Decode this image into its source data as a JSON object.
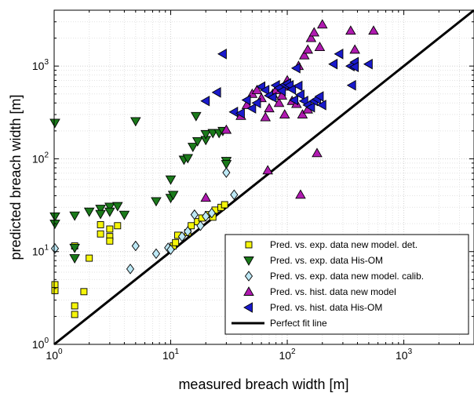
{
  "chart_data": {
    "type": "scatter",
    "title": "",
    "xlabel": "measured breach width [m]",
    "ylabel": "predicted breach width [m]",
    "xscale": "log",
    "yscale": "log",
    "xlim": [
      1,
      4000
    ],
    "ylim": [
      1,
      4000
    ],
    "x_ticks": [
      {
        "value": 1,
        "base": "10",
        "exp": "0"
      },
      {
        "value": 10,
        "base": "10",
        "exp": "1"
      },
      {
        "value": 100,
        "base": "10",
        "exp": "2"
      },
      {
        "value": 1000,
        "base": "10",
        "exp": "3"
      }
    ],
    "y_ticks": [
      {
        "value": 1,
        "base": "10",
        "exp": "0"
      },
      {
        "value": 10,
        "base": "10",
        "exp": "1"
      },
      {
        "value": 100,
        "base": "10",
        "exp": "2"
      },
      {
        "value": 1000,
        "base": "10",
        "exp": "3"
      }
    ],
    "grid": true,
    "legend_position": "bottom-right",
    "series": [
      {
        "name": "Pred. vs. exp. data new model. det.",
        "marker": "square",
        "color": "#f5f50a",
        "points": [
          [
            1.0,
            4.4
          ],
          [
            1.0,
            3.8
          ],
          [
            1.5,
            11.5
          ],
          [
            1.5,
            2.6
          ],
          [
            1.5,
            2.1
          ],
          [
            1.8,
            3.7
          ],
          [
            2.0,
            8.5
          ],
          [
            2.5,
            19.5
          ],
          [
            2.5,
            15.5
          ],
          [
            3.0,
            17.5
          ],
          [
            3.0,
            14.5
          ],
          [
            3.0,
            13.0
          ],
          [
            3.5,
            19.0
          ],
          [
            10.5,
            11.5
          ],
          [
            11.0,
            12.5
          ],
          [
            11.5,
            15.0
          ],
          [
            14.0,
            16.0
          ],
          [
            15.0,
            19.0
          ],
          [
            17.0,
            21.0
          ],
          [
            18.5,
            23.0
          ],
          [
            21.0,
            25.0
          ],
          [
            23.0,
            23.5
          ],
          [
            24.0,
            28.0
          ],
          [
            27.0,
            30.0
          ],
          [
            29.0,
            32.0
          ]
        ]
      },
      {
        "name": "Pred. vs. exp. data His-OM",
        "marker": "triangle-down",
        "color": "#1a7a1a",
        "points": [
          [
            1.0,
            245
          ],
          [
            1.0,
            24
          ],
          [
            1.0,
            20
          ],
          [
            1.5,
            24.5
          ],
          [
            1.5,
            11
          ],
          [
            1.5,
            8.5
          ],
          [
            2.0,
            27
          ],
          [
            2.5,
            29
          ],
          [
            2.5,
            25.5
          ],
          [
            3.0,
            30.5
          ],
          [
            3.0,
            27
          ],
          [
            3.5,
            31
          ],
          [
            4.0,
            25
          ],
          [
            5.0,
            255
          ],
          [
            7.5,
            35
          ],
          [
            10.0,
            38
          ],
          [
            10.5,
            41
          ],
          [
            10.0,
            60
          ],
          [
            13.0,
            98
          ],
          [
            14.0,
            102
          ],
          [
            15.5,
            135
          ],
          [
            16.5,
            290
          ],
          [
            17.0,
            155
          ],
          [
            20.0,
            160
          ],
          [
            20.0,
            185
          ],
          [
            23.0,
            190
          ],
          [
            26.0,
            190
          ],
          [
            28.0,
            200
          ],
          [
            30.0,
            95
          ],
          [
            30.0,
            88
          ]
        ]
      },
      {
        "name": "Pred. vs. exp. data new model. calib.",
        "marker": "diamond",
        "color": "#bde8f5",
        "points": [
          [
            1.0,
            10.8
          ],
          [
            4.5,
            6.5
          ],
          [
            5.0,
            11.5
          ],
          [
            7.5,
            9.5
          ],
          [
            9.5,
            11.0
          ],
          [
            10.0,
            10.5
          ],
          [
            12.5,
            14.5
          ],
          [
            14.0,
            16.5
          ],
          [
            16.0,
            25.0
          ],
          [
            18.0,
            19.0
          ],
          [
            20.0,
            24.0
          ],
          [
            22.5,
            26.0
          ],
          [
            30.0,
            71.0
          ],
          [
            35.0,
            41.0
          ]
        ]
      },
      {
        "name": "Pred. vs. hist. data new model",
        "marker": "triangle-up",
        "color": "#b01ab0",
        "points": [
          [
            20,
            38
          ],
          [
            30,
            205
          ],
          [
            40,
            290
          ],
          [
            45,
            380
          ],
          [
            50,
            500
          ],
          [
            55,
            550
          ],
          [
            60,
            450
          ],
          [
            65,
            280
          ],
          [
            68,
            75
          ],
          [
            70,
            350
          ],
          [
            75,
            500
          ],
          [
            80,
            550
          ],
          [
            85,
            400
          ],
          [
            90,
            480
          ],
          [
            95,
            300
          ],
          [
            100,
            600
          ],
          [
            110,
            420
          ],
          [
            120,
            390
          ],
          [
            125,
            1000
          ],
          [
            130,
            41
          ],
          [
            135,
            300
          ],
          [
            140,
            1300
          ],
          [
            150,
            340
          ],
          [
            160,
            2000
          ],
          [
            170,
            2300
          ],
          [
            180,
            115
          ],
          [
            190,
            1600
          ],
          [
            200,
            2800
          ],
          [
            350,
            2400
          ],
          [
            550,
            2400
          ],
          [
            380,
            1500
          ],
          [
            150,
            1500
          ],
          [
            100,
            700
          ]
        ]
      },
      {
        "name": "Pred. vs. hist. data His-OM",
        "marker": "triangle-left",
        "color": "#1a1acc",
        "points": [
          [
            28,
            1350
          ],
          [
            20,
            420
          ],
          [
            25,
            520
          ],
          [
            35,
            320
          ],
          [
            40,
            310
          ],
          [
            45,
            430
          ],
          [
            50,
            350
          ],
          [
            55,
            400
          ],
          [
            60,
            600
          ],
          [
            65,
            550
          ],
          [
            70,
            480
          ],
          [
            75,
            460
          ],
          [
            80,
            620
          ],
          [
            85,
            580
          ],
          [
            90,
            540
          ],
          [
            95,
            630
          ],
          [
            100,
            650
          ],
          [
            105,
            620
          ],
          [
            110,
            560
          ],
          [
            115,
            430
          ],
          [
            120,
            950
          ],
          [
            125,
            610
          ],
          [
            130,
            490
          ],
          [
            140,
            420
          ],
          [
            150,
            380
          ],
          [
            160,
            360
          ],
          [
            170,
            420
          ],
          [
            180,
            440
          ],
          [
            190,
            470
          ],
          [
            200,
            380
          ],
          [
            250,
            1050
          ],
          [
            280,
            1350
          ],
          [
            350,
            1000
          ],
          [
            360,
            620
          ],
          [
            380,
            1100
          ],
          [
            380,
            980
          ],
          [
            500,
            1050
          ]
        ]
      }
    ],
    "reference_line": {
      "name": "Perfect fit line",
      "points": [
        [
          1,
          1
        ],
        [
          4000,
          4000
        ]
      ],
      "color": "#000000"
    }
  }
}
